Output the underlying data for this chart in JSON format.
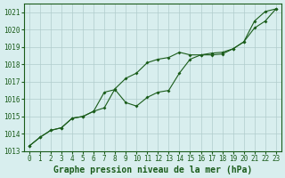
{
  "line1_x": [
    0,
    1,
    2,
    3,
    4,
    5,
    6,
    7,
    8,
    9,
    10,
    11,
    12,
    13,
    14,
    15,
    16,
    17,
    18,
    19,
    20,
    21,
    22,
    23
  ],
  "line1_y": [
    1013.3,
    1013.8,
    1014.2,
    1014.35,
    1014.9,
    1015.0,
    1015.3,
    1015.5,
    1016.6,
    1017.2,
    1017.5,
    1018.1,
    1018.3,
    1018.4,
    1018.7,
    1018.55,
    1018.55,
    1018.55,
    1018.6,
    1018.9,
    1019.3,
    1020.5,
    1021.05,
    1021.2
  ],
  "line2_x": [
    0,
    1,
    2,
    3,
    4,
    5,
    6,
    7,
    8,
    9,
    10,
    11,
    12,
    13,
    14,
    15,
    16,
    17,
    18,
    19,
    20,
    21,
    22,
    23
  ],
  "line2_y": [
    1013.3,
    1013.8,
    1014.2,
    1014.35,
    1014.9,
    1015.0,
    1015.3,
    1016.4,
    1016.55,
    1015.8,
    1015.6,
    1016.1,
    1016.4,
    1016.5,
    1017.5,
    1018.3,
    1018.55,
    1018.65,
    1018.7,
    1018.9,
    1019.3,
    1020.1,
    1020.5,
    1021.2
  ],
  "line_color": "#1a5c1a",
  "bg_color": "#d8eeee",
  "grid_color": "#b0cccc",
  "ylim": [
    1013,
    1021.5
  ],
  "xlim": [
    -0.5,
    23.5
  ],
  "yticks": [
    1013,
    1014,
    1015,
    1016,
    1017,
    1018,
    1019,
    1020,
    1021
  ],
  "xticks": [
    0,
    1,
    2,
    3,
    4,
    5,
    6,
    7,
    8,
    9,
    10,
    11,
    12,
    13,
    14,
    15,
    16,
    17,
    18,
    19,
    20,
    21,
    22,
    23
  ],
  "xlabel": "Graphe pression niveau de la mer (hPa)",
  "xlabel_fontsize": 7,
  "tick_fontsize": 5.5
}
